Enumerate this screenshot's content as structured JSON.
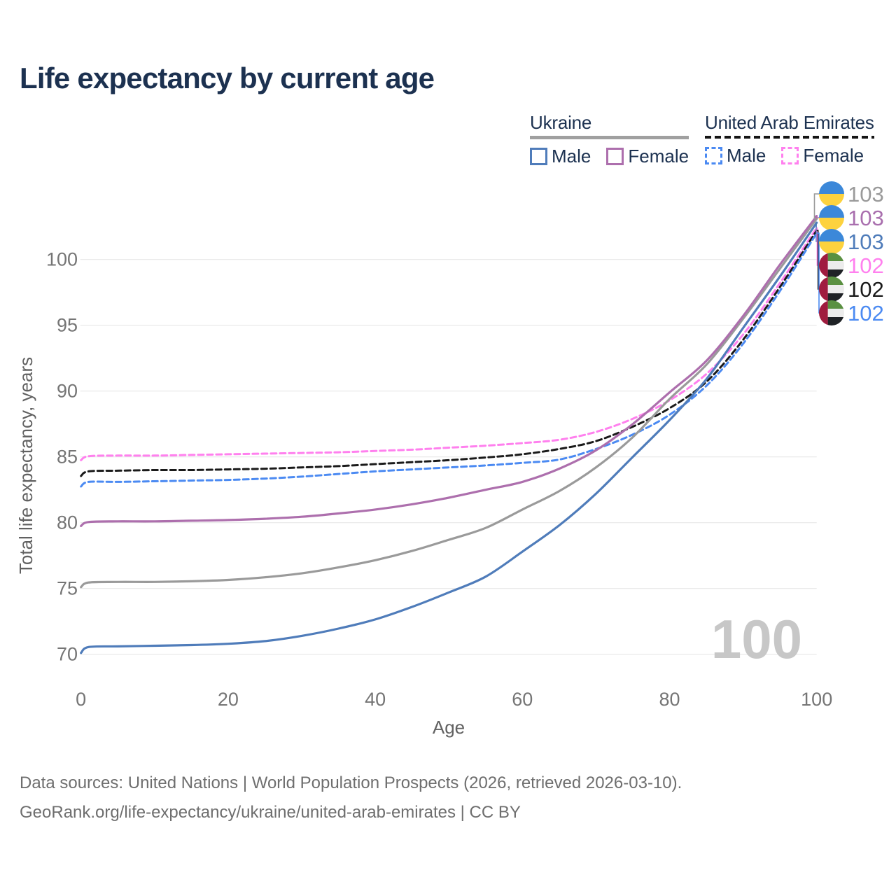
{
  "title": "Life expectancy by current age",
  "legend": {
    "groups": [
      {
        "name": "Ukraine",
        "underline_style": "solid",
        "underline_color": "#a0a0a0",
        "items": [
          {
            "label": "Male",
            "color": "#4f7cba",
            "dashed": false
          },
          {
            "label": "Female",
            "color": "#ad6fad",
            "dashed": false
          }
        ]
      },
      {
        "name": "United Arab Emirates",
        "underline_style": "dashed",
        "underline_color": "#151515",
        "items": [
          {
            "label": "Male",
            "color": "#4b8af2",
            "dashed": true
          },
          {
            "label": "Female",
            "color": "#ff80ee",
            "dashed": true
          }
        ]
      }
    ]
  },
  "chart_data": {
    "type": "line",
    "title": "Life expectancy by current age",
    "xlabel": "Age",
    "ylabel": "Total life expectancy, years",
    "x_ticks": [
      0,
      20,
      40,
      60,
      80,
      100
    ],
    "y_ticks": [
      70,
      75,
      80,
      85,
      90,
      95,
      100
    ],
    "xlim": [
      0,
      100
    ],
    "ylim": [
      69,
      104
    ],
    "grid": "horizontal-only",
    "gridline_color": "#e7e7e7",
    "tick_label_color": "#757575",
    "axis_title_color": "#616161",
    "watermark": "100",
    "watermark_color": "#c7c7c7",
    "series": [
      {
        "key": "ae_female",
        "name": "United Arab Emirates — Female",
        "country": "United Arab Emirates",
        "sex": "Female",
        "color": "#ff80ee",
        "dashed": true,
        "flag": "uae",
        "end_label": "102",
        "points": [
          [
            0,
            84.75
          ],
          [
            1,
            85.05
          ],
          [
            5,
            85.1
          ],
          [
            10,
            85.1
          ],
          [
            15,
            85.15
          ],
          [
            20,
            85.2
          ],
          [
            25,
            85.25
          ],
          [
            30,
            85.3
          ],
          [
            35,
            85.35
          ],
          [
            40,
            85.45
          ],
          [
            45,
            85.55
          ],
          [
            50,
            85.7
          ],
          [
            55,
            85.85
          ],
          [
            60,
            86.05
          ],
          [
            65,
            86.3
          ],
          [
            70,
            86.9
          ],
          [
            75,
            87.9
          ],
          [
            80,
            89.3
          ],
          [
            85,
            91.3
          ],
          [
            90,
            94.3
          ],
          [
            95,
            98.2
          ],
          [
            100,
            102.4
          ]
        ]
      },
      {
        "key": "ae_total",
        "name": "United Arab Emirates — Both sexes",
        "country": "United Arab Emirates",
        "sex": "Both sexes",
        "color": "#1a1a1a",
        "dashed": true,
        "flag": "uae",
        "end_label": "102",
        "points": [
          [
            0,
            83.55
          ],
          [
            1,
            83.9
          ],
          [
            5,
            83.95
          ],
          [
            10,
            84.0
          ],
          [
            15,
            84.0
          ],
          [
            20,
            84.05
          ],
          [
            25,
            84.1
          ],
          [
            30,
            84.2
          ],
          [
            35,
            84.3
          ],
          [
            40,
            84.45
          ],
          [
            45,
            84.6
          ],
          [
            50,
            84.75
          ],
          [
            55,
            84.95
          ],
          [
            60,
            85.2
          ],
          [
            65,
            85.6
          ],
          [
            70,
            86.2
          ],
          [
            75,
            87.3
          ],
          [
            80,
            88.7
          ],
          [
            85,
            90.7
          ],
          [
            90,
            93.9
          ],
          [
            95,
            97.9
          ],
          [
            100,
            102.2
          ]
        ]
      },
      {
        "key": "ae_male",
        "name": "United Arab Emirates — Male",
        "country": "United Arab Emirates",
        "sex": "Male",
        "color": "#4b8af2",
        "dashed": true,
        "flag": "uae",
        "end_label": "102",
        "points": [
          [
            0,
            82.75
          ],
          [
            1,
            83.1
          ],
          [
            5,
            83.1
          ],
          [
            10,
            83.15
          ],
          [
            15,
            83.2
          ],
          [
            20,
            83.25
          ],
          [
            25,
            83.35
          ],
          [
            30,
            83.5
          ],
          [
            35,
            83.7
          ],
          [
            40,
            83.9
          ],
          [
            45,
            84.05
          ],
          [
            50,
            84.2
          ],
          [
            55,
            84.35
          ],
          [
            60,
            84.55
          ],
          [
            65,
            84.8
          ],
          [
            70,
            85.6
          ],
          [
            75,
            86.7
          ],
          [
            80,
            88.2
          ],
          [
            85,
            90.4
          ],
          [
            90,
            93.6
          ],
          [
            95,
            97.6
          ],
          [
            100,
            102.0
          ]
        ]
      },
      {
        "key": "ua_total",
        "name": "Ukraine — Both sexes",
        "country": "Ukraine",
        "sex": "Both sexes",
        "color": "#9a9a9a",
        "dashed": false,
        "flag": "ukraine",
        "end_label": "103",
        "points": [
          [
            0,
            75.1
          ],
          [
            1,
            75.45
          ],
          [
            5,
            75.5
          ],
          [
            10,
            75.5
          ],
          [
            15,
            75.55
          ],
          [
            20,
            75.65
          ],
          [
            25,
            75.85
          ],
          [
            30,
            76.15
          ],
          [
            35,
            76.6
          ],
          [
            40,
            77.15
          ],
          [
            45,
            77.85
          ],
          [
            50,
            78.7
          ],
          [
            55,
            79.6
          ],
          [
            60,
            81.0
          ],
          [
            65,
            82.4
          ],
          [
            70,
            84.2
          ],
          [
            75,
            86.5
          ],
          [
            80,
            89.4
          ],
          [
            85,
            92.0
          ],
          [
            90,
            95.5
          ],
          [
            95,
            99.3
          ],
          [
            100,
            103.1
          ]
        ]
      },
      {
        "key": "ua_female",
        "name": "Ukraine — Female",
        "country": "Ukraine",
        "sex": "Female",
        "color": "#ad6fad",
        "dashed": false,
        "flag": "ukraine",
        "end_label": "103",
        "points": [
          [
            0,
            79.75
          ],
          [
            1,
            80.05
          ],
          [
            5,
            80.1
          ],
          [
            10,
            80.1
          ],
          [
            15,
            80.15
          ],
          [
            20,
            80.2
          ],
          [
            25,
            80.3
          ],
          [
            30,
            80.45
          ],
          [
            35,
            80.7
          ],
          [
            40,
            81.0
          ],
          [
            45,
            81.4
          ],
          [
            50,
            81.9
          ],
          [
            55,
            82.5
          ],
          [
            60,
            83.1
          ],
          [
            65,
            84.1
          ],
          [
            70,
            85.5
          ],
          [
            75,
            87.5
          ],
          [
            80,
            89.9
          ],
          [
            85,
            92.3
          ],
          [
            90,
            95.7
          ],
          [
            95,
            99.6
          ],
          [
            100,
            103.3
          ]
        ]
      },
      {
        "key": "ua_male",
        "name": "Ukraine — Male",
        "country": "Ukraine",
        "sex": "Male",
        "color": "#4f7cba",
        "dashed": false,
        "flag": "ukraine",
        "end_label": "103",
        "points": [
          [
            0,
            70.1
          ],
          [
            1,
            70.55
          ],
          [
            5,
            70.6
          ],
          [
            10,
            70.65
          ],
          [
            15,
            70.7
          ],
          [
            20,
            70.8
          ],
          [
            25,
            71.0
          ],
          [
            30,
            71.4
          ],
          [
            35,
            71.95
          ],
          [
            40,
            72.65
          ],
          [
            45,
            73.6
          ],
          [
            50,
            74.7
          ],
          [
            55,
            75.9
          ],
          [
            60,
            77.8
          ],
          [
            65,
            79.8
          ],
          [
            70,
            82.2
          ],
          [
            75,
            85.0
          ],
          [
            80,
            87.8
          ],
          [
            85,
            90.9
          ],
          [
            90,
            94.8
          ],
          [
            95,
            98.7
          ],
          [
            100,
            102.8
          ]
        ]
      }
    ],
    "right_labels": [
      {
        "series": "ua_total",
        "label": "103",
        "label_color": "#9a9a9a",
        "flag": "ukraine"
      },
      {
        "series": "ua_female",
        "label": "103",
        "label_color": "#a96fae",
        "flag": "ukraine"
      },
      {
        "series": "ua_male",
        "label": "103",
        "label_color": "#4f7cba",
        "flag": "ukraine"
      },
      {
        "series": "ae_female",
        "label": "102",
        "label_color": "#ff80ee",
        "flag": "uae"
      },
      {
        "series": "ae_total",
        "label": "102",
        "label_color": "#1a1a1a",
        "flag": "uae"
      },
      {
        "series": "ae_male",
        "label": "102",
        "label_color": "#4b8af2",
        "flag": "uae"
      }
    ],
    "flag_colors": {
      "ukraine": {
        "top": "#3c88d9",
        "bottom": "#fdd23e"
      },
      "uae": {
        "band": "#a01c3f",
        "stripe1": "#5a9041",
        "stripe2": "#ececec",
        "stripe3": "#1f2226"
      }
    }
  },
  "footer": {
    "line1": "Data sources: United Nations | World Population Prospects (2026, retrieved 2026-03-10).",
    "line2": "GeoRank.org/life-expectancy/ukraine/united-arab-emirates | CC BY"
  }
}
